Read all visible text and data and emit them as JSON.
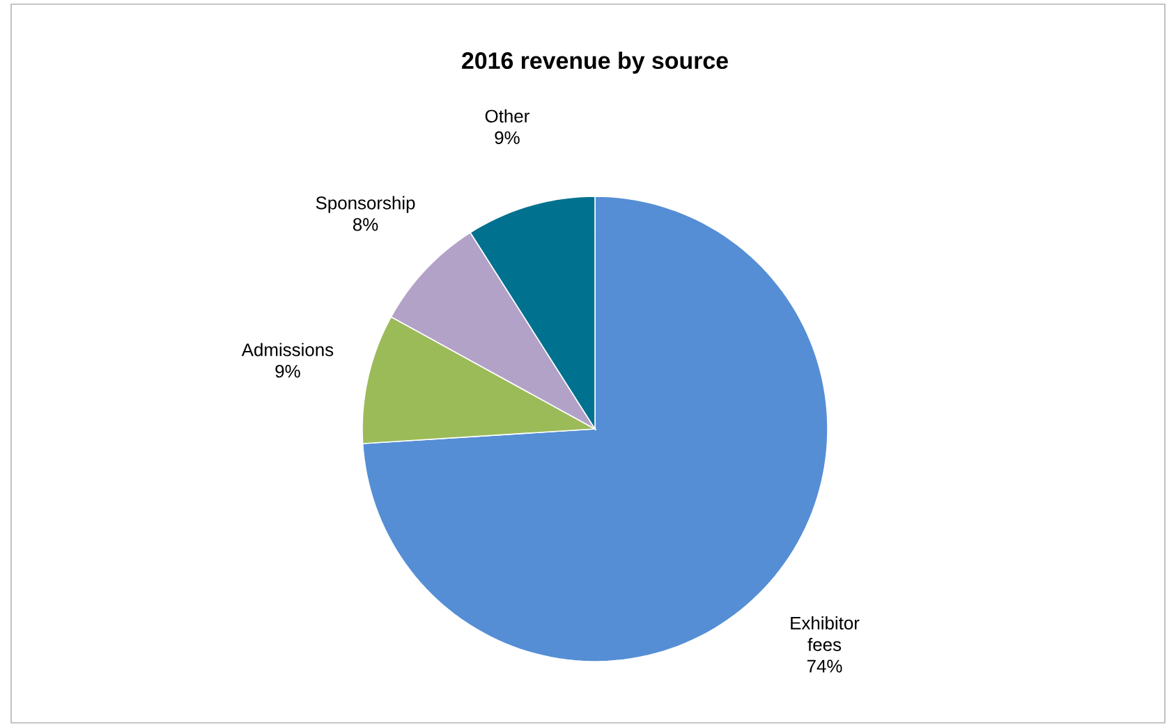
{
  "chart_data": {
    "type": "pie",
    "title": "2016 revenue by source",
    "categories": [
      "Exhibitor fees",
      "Admissions",
      "Sponsorship",
      "Other"
    ],
    "values": [
      74,
      9,
      8,
      9
    ],
    "value_labels": [
      "74%",
      "9%",
      "8%",
      "9%"
    ],
    "colors": [
      "#558ed5",
      "#9bbb59",
      "#b3a2c7",
      "#00718f"
    ]
  }
}
